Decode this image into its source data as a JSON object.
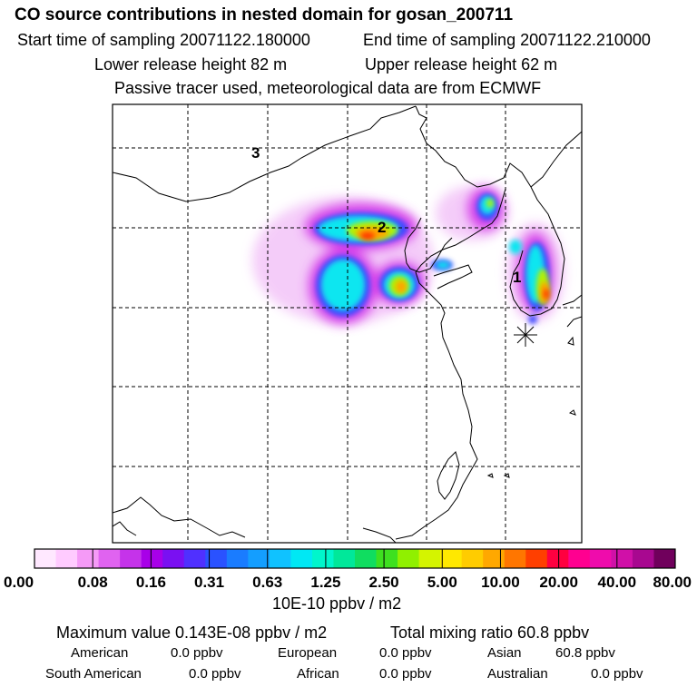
{
  "header": {
    "title": "CO  source contributions in nested domain for gosan_200711",
    "start_label": "Start time of sampling 20071122.180000",
    "end_label": "End time of sampling 20071122.210000",
    "lower_label": "Lower release height   82 m",
    "upper_label": "Upper release height   62 m",
    "tracer_note": "Passive tracer used, meteorological data are from ECMWF"
  },
  "map": {
    "region_labels": [
      "1",
      "2",
      "3"
    ]
  },
  "colorbar": {
    "tick_labels": [
      "0.00",
      "0.08",
      "0.16",
      "0.31",
      "0.63",
      "1.25",
      "2.50",
      "5.00",
      "10.00",
      "20.00",
      "40.00",
      "80.00"
    ],
    "unit": "10E-10 ppbv / m2",
    "colors": [
      "#ffe8ff",
      "#ffcbff",
      "#f59af7",
      "#e063f0",
      "#c533ea",
      "#a800e8",
      "#7a10f2",
      "#5030ff",
      "#2a52ff",
      "#1a7cff",
      "#149eff",
      "#10c2ff",
      "#00e8f4",
      "#00f6cc",
      "#00e89a",
      "#10dd60",
      "#3ee020",
      "#90f000",
      "#d4f400",
      "#ffe800",
      "#ffcc00",
      "#ffa800",
      "#ff7600",
      "#ff3f00",
      "#ff0040",
      "#ff0090",
      "#ef0cac",
      "#d010a8",
      "#a80890",
      "#70005c"
    ]
  },
  "footer": {
    "max_label": "Maximum value  0.143E-08 ppbv / m2",
    "total_label": "Total mixing ratio       60.8 ppbv",
    "american_label": "American",
    "american_value": "0.0 ppbv",
    "european_label": "European",
    "european_value": "0.0 ppbv",
    "asian_label": "Asian",
    "asian_value": "60.8 ppbv",
    "south_american_label": "South American",
    "south_american_value": "0.0 ppbv",
    "african_label": "African",
    "african_value": "0.0 ppbv",
    "australian_label": "Australian",
    "australian_value": "0.0 ppbv"
  }
}
